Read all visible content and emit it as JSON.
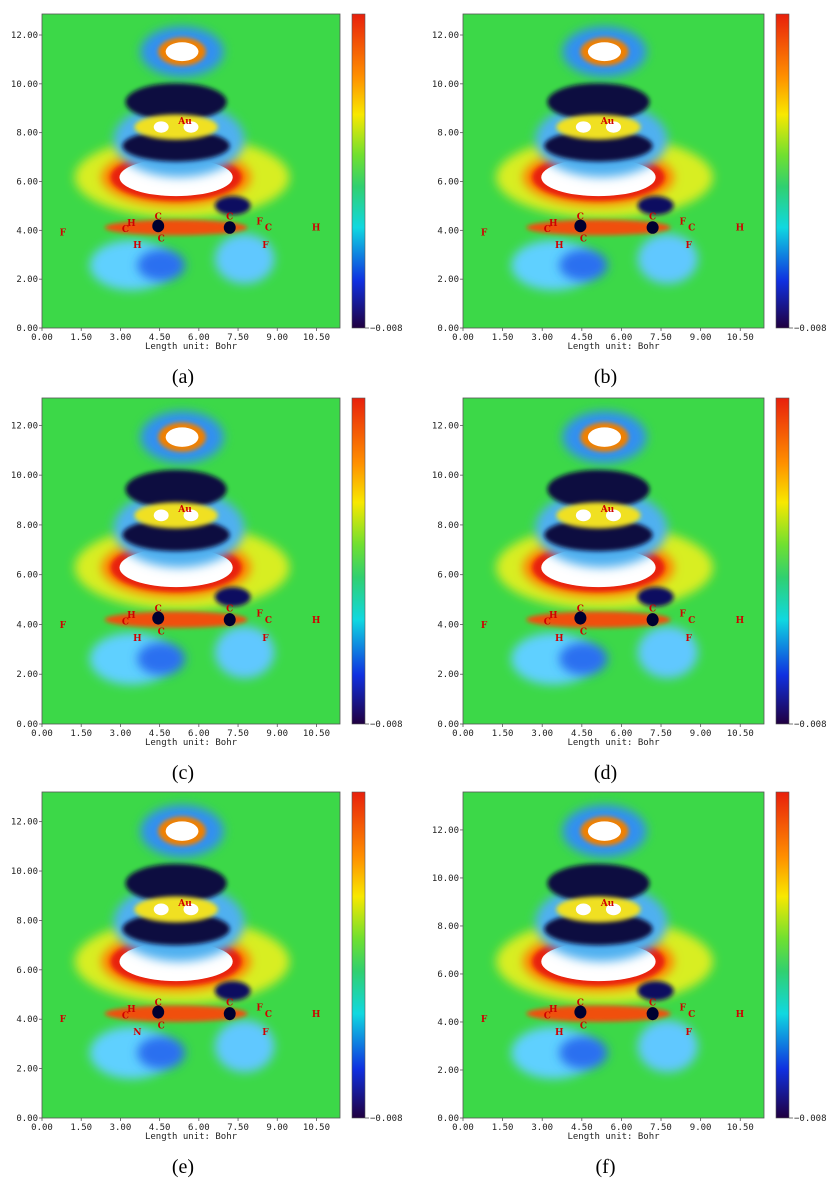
{
  "panels": [
    {
      "caption": "(a)",
      "x_label": "Length unit: Bohr",
      "xlim": [
        0,
        11.4
      ],
      "ylim": [
        0,
        12.86
      ],
      "xticks": [
        {
          "value": 0,
          "label": "0.00"
        },
        {
          "value": 1.5,
          "label": "1.50"
        },
        {
          "value": 3,
          "label": "3.00"
        },
        {
          "value": 4.5,
          "label": "4.50"
        },
        {
          "value": 6,
          "label": "6.00"
        },
        {
          "value": 7.5,
          "label": "7.50"
        },
        {
          "value": 9,
          "label": "9.00"
        },
        {
          "value": 10.5,
          "label": "10.50"
        }
      ],
      "yticks": [
        {
          "value": 0,
          "label": "0.00"
        },
        {
          "value": 2,
          "label": "2.00"
        },
        {
          "value": 4,
          "label": "4.00"
        },
        {
          "value": 6,
          "label": "6.00"
        },
        {
          "value": 8,
          "label": "8.00"
        },
        {
          "value": 10,
          "label": "10.00"
        },
        {
          "value": 12,
          "label": "12.00"
        }
      ],
      "colorbar_ticks": [
        {
          "value": -0.008,
          "label": "−0.008"
        }
      ],
      "atoms": [
        "F",
        "H",
        "C",
        "C",
        "C",
        "C",
        "F",
        "C",
        "F",
        "H",
        "Au",
        "H"
      ]
    },
    {
      "caption": "(b)",
      "x_label": "Length unit: Bohr",
      "xlim": [
        0,
        11.4
      ],
      "ylim": [
        0,
        12.86
      ],
      "xticks": [
        {
          "value": 0,
          "label": "0.00"
        },
        {
          "value": 1.5,
          "label": "1.50"
        },
        {
          "value": 3,
          "label": "3.00"
        },
        {
          "value": 4.5,
          "label": "4.50"
        },
        {
          "value": 6,
          "label": "6.00"
        },
        {
          "value": 7.5,
          "label": "7.50"
        },
        {
          "value": 9,
          "label": "9.00"
        },
        {
          "value": 10.5,
          "label": "10.50"
        }
      ],
      "yticks": [
        {
          "value": 0,
          "label": "0.00"
        },
        {
          "value": 2,
          "label": "2.00"
        },
        {
          "value": 4,
          "label": "4.00"
        },
        {
          "value": 6,
          "label": "6.00"
        },
        {
          "value": 8,
          "label": "8.00"
        },
        {
          "value": 10,
          "label": "10.00"
        },
        {
          "value": 12,
          "label": "12.00"
        }
      ],
      "colorbar_ticks": [
        {
          "value": -0.008,
          "label": "−0.008"
        }
      ],
      "atoms": [
        "F",
        "H",
        "C",
        "C",
        "C",
        "C",
        "F",
        "C",
        "F",
        "H",
        "Au",
        "H"
      ]
    },
    {
      "caption": "(c)",
      "x_label": "Length unit: Bohr",
      "xlim": [
        0,
        11.4
      ],
      "ylim": [
        0,
        13.1
      ],
      "xticks": [
        {
          "value": 0,
          "label": "0.00"
        },
        {
          "value": 1.5,
          "label": "1.50"
        },
        {
          "value": 3,
          "label": "3.00"
        },
        {
          "value": 4.5,
          "label": "4.50"
        },
        {
          "value": 6,
          "label": "6.00"
        },
        {
          "value": 7.5,
          "label": "7.50"
        },
        {
          "value": 9,
          "label": "9.00"
        },
        {
          "value": 10.5,
          "label": "10.50"
        }
      ],
      "yticks": [
        {
          "value": 0,
          "label": "0.00"
        },
        {
          "value": 2,
          "label": "2.00"
        },
        {
          "value": 4,
          "label": "4.00"
        },
        {
          "value": 6,
          "label": "6.00"
        },
        {
          "value": 8,
          "label": "8.00"
        },
        {
          "value": 10,
          "label": "10.00"
        },
        {
          "value": 12,
          "label": "12.00"
        }
      ],
      "colorbar_ticks": [
        {
          "value": -0.008,
          "label": "−0.008"
        }
      ],
      "atoms": [
        "F",
        "H",
        "C",
        "C",
        "C",
        "C",
        "F",
        "C",
        "F",
        "H",
        "Au",
        "H"
      ]
    },
    {
      "caption": "(d)",
      "x_label": "Length unit: Bohr",
      "xlim": [
        0,
        11.4
      ],
      "ylim": [
        0,
        13.1
      ],
      "xticks": [
        {
          "value": 0,
          "label": "0.00"
        },
        {
          "value": 1.5,
          "label": "1.50"
        },
        {
          "value": 3,
          "label": "3.00"
        },
        {
          "value": 4.5,
          "label": "4.50"
        },
        {
          "value": 6,
          "label": "6.00"
        },
        {
          "value": 7.5,
          "label": "7.50"
        },
        {
          "value": 9,
          "label": "9.00"
        },
        {
          "value": 10.5,
          "label": "10.50"
        }
      ],
      "yticks": [
        {
          "value": 0,
          "label": "0.00"
        },
        {
          "value": 2,
          "label": "2.00"
        },
        {
          "value": 4,
          "label": "4.00"
        },
        {
          "value": 6,
          "label": "6.00"
        },
        {
          "value": 8,
          "label": "8.00"
        },
        {
          "value": 10,
          "label": "10.00"
        },
        {
          "value": 12,
          "label": "12.00"
        }
      ],
      "colorbar_ticks": [
        {
          "value": -0.008,
          "label": "−0.008"
        }
      ],
      "atoms": [
        "F",
        "H",
        "C",
        "C",
        "C",
        "C",
        "F",
        "C",
        "F",
        "H",
        "Au",
        "H"
      ]
    },
    {
      "caption": "(e)",
      "x_label": "Length unit: Bohr",
      "xlim": [
        0,
        11.4
      ],
      "ylim": [
        0,
        13.2
      ],
      "xticks": [
        {
          "value": 0,
          "label": "0.00"
        },
        {
          "value": 1.5,
          "label": "1.50"
        },
        {
          "value": 3,
          "label": "3.00"
        },
        {
          "value": 4.5,
          "label": "4.50"
        },
        {
          "value": 6,
          "label": "6.00"
        },
        {
          "value": 7.5,
          "label": "7.50"
        },
        {
          "value": 9,
          "label": "9.00"
        },
        {
          "value": 10.5,
          "label": "10.50"
        }
      ],
      "yticks": [
        {
          "value": 0,
          "label": "0.00"
        },
        {
          "value": 2,
          "label": "2.00"
        },
        {
          "value": 4,
          "label": "4.00"
        },
        {
          "value": 6,
          "label": "6.00"
        },
        {
          "value": 8,
          "label": "8.00"
        },
        {
          "value": 10,
          "label": "10.00"
        },
        {
          "value": 12,
          "label": "12.00"
        }
      ],
      "colorbar_ticks": [
        {
          "value": -0.008,
          "label": "−0.008"
        }
      ],
      "atoms": [
        "F",
        "H",
        "C",
        "C",
        "C",
        "C",
        "F",
        "C",
        "F",
        "H",
        "Au",
        "N"
      ]
    },
    {
      "caption": "(f)",
      "x_label": "Length unit: Bohr",
      "xlim": [
        0,
        11.4
      ],
      "ylim": [
        0,
        13.58
      ],
      "xticks": [
        {
          "value": 0,
          "label": "0.00"
        },
        {
          "value": 1.5,
          "label": "1.50"
        },
        {
          "value": 3,
          "label": "3.00"
        },
        {
          "value": 4.5,
          "label": "4.50"
        },
        {
          "value": 6,
          "label": "6.00"
        },
        {
          "value": 7.5,
          "label": "7.50"
        },
        {
          "value": 9,
          "label": "9.00"
        },
        {
          "value": 10.5,
          "label": "10.50"
        }
      ],
      "yticks": [
        {
          "value": 0,
          "label": "0.00"
        },
        {
          "value": 2,
          "label": "2.00"
        },
        {
          "value": 4,
          "label": "4.00"
        },
        {
          "value": 6,
          "label": "6.00"
        },
        {
          "value": 8,
          "label": "8.00"
        },
        {
          "value": 10,
          "label": "10.00"
        },
        {
          "value": 12,
          "label": "12.00"
        }
      ],
      "colorbar_ticks": [
        {
          "value": -0.008,
          "label": "−0.008"
        }
      ],
      "atoms": [
        "F",
        "H",
        "C",
        "C",
        "C",
        "C",
        "F",
        "C",
        "F",
        "H",
        "Au",
        "H"
      ]
    }
  ]
}
